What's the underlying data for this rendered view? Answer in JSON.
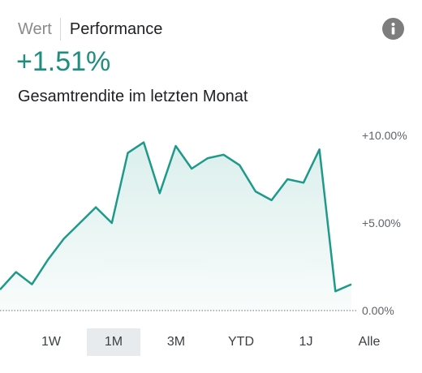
{
  "header": {
    "tabs": [
      {
        "label": "Wert",
        "active": false
      },
      {
        "label": "Performance",
        "active": true
      }
    ],
    "info_icon": "info-icon"
  },
  "summary": {
    "value": "+1.51%",
    "description": "Gesamtrendite im letzten Monat",
    "value_color": "#1e8e7e"
  },
  "chart_data": {
    "type": "area",
    "y_ticks": [
      "+10.00%",
      "+5.00%",
      "0.00%"
    ],
    "ylim": [
      0,
      10
    ],
    "baseline": 0,
    "grid": false,
    "line_color": "#1e9a8a",
    "x": [
      0,
      1,
      2,
      3,
      4,
      5,
      6,
      7,
      8,
      9,
      10,
      11,
      12,
      13,
      14,
      15,
      16,
      17,
      18,
      19,
      20,
      21,
      22
    ],
    "values": [
      1.2,
      2.2,
      1.5,
      2.9,
      4.1,
      5.0,
      5.9,
      5.0,
      9.0,
      9.6,
      6.7,
      9.4,
      8.1,
      8.7,
      8.9,
      8.3,
      6.8,
      6.3,
      7.5,
      7.3,
      9.2,
      1.1,
      1.5
    ]
  },
  "range_selector": {
    "options": [
      "1W",
      "1M",
      "3M",
      "YTD",
      "1J",
      "Alle"
    ],
    "selected": "1M"
  }
}
